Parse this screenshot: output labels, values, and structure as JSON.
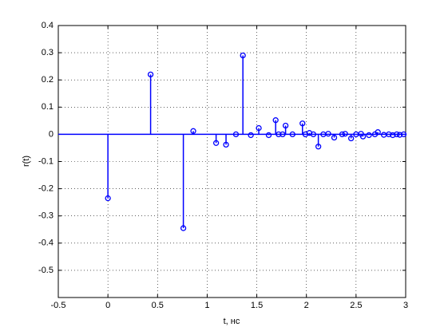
{
  "chart_data": {
    "type": "stem",
    "xlabel": "t, нс",
    "ylabel": "r(t)",
    "color": "#0000ff",
    "grid": true,
    "xlim": [
      -0.5,
      3
    ],
    "ylim": [
      -0.6,
      0.4
    ],
    "xticks": [
      -0.5,
      0,
      0.5,
      1,
      1.5,
      2,
      2.5,
      3
    ],
    "yticks": [
      -0.5,
      -0.4,
      -0.3,
      -0.2,
      -0.1,
      0,
      0.1,
      0.2,
      0.3,
      0.4
    ],
    "x": [
      0,
      0.43,
      0.76,
      0.86,
      1.09,
      1.19,
      1.29,
      1.36,
      1.44,
      1.52,
      1.62,
      1.69,
      1.72,
      1.76,
      1.79,
      1.86,
      1.96,
      1.99,
      2.03,
      2.07,
      2.12,
      2.17,
      2.22,
      2.28,
      2.36,
      2.39,
      2.45,
      2.5,
      2.55,
      2.57,
      2.63,
      2.69,
      2.72,
      2.78,
      2.83,
      2.87,
      2.91,
      2.94,
      2.98
    ],
    "values": [
      -0.235,
      0.22,
      -0.345,
      0.012,
      -0.032,
      -0.038,
      0,
      0.29,
      -0.003,
      0.023,
      -0.003,
      0.052,
      0,
      0,
      0.032,
      0,
      0.04,
      0,
      0.005,
      0,
      -0.045,
      0,
      0.002,
      -0.012,
      0,
      0.002,
      -0.015,
      0,
      0.002,
      -0.008,
      -0.003,
      0,
      0.008,
      -0.002,
      0,
      -0.003,
      0,
      -0.002,
      0
    ]
  }
}
